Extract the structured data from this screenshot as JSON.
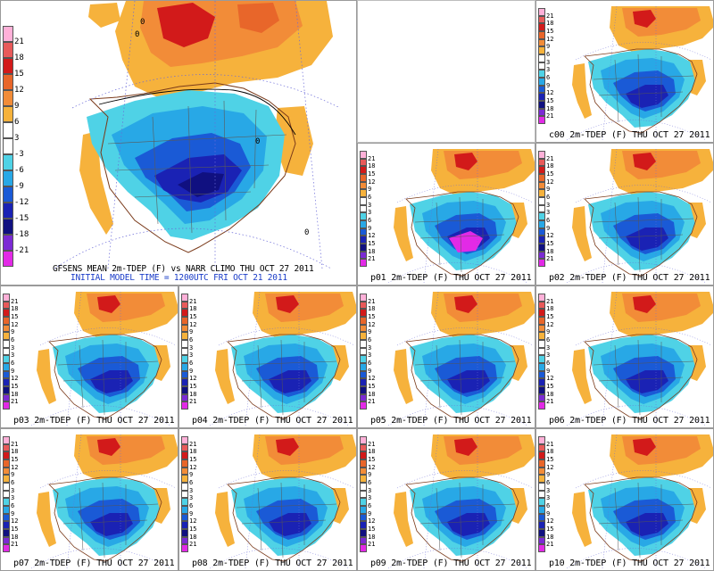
{
  "main": {
    "title": "GFSENS MEAN 2m-TDEP (F) vs NARR CLIMO THU OCT 27 2011",
    "subtitle": "INITIAL MODEL TIME = 1200UTC FRI OCT 21 2011",
    "contour_labels": [
      "0",
      "0",
      "0",
      "0"
    ]
  },
  "colorbar": {
    "labels": [
      "21",
      "18",
      "15",
      "12",
      "9",
      "6",
      "3",
      "-3",
      "-6",
      "-9",
      "-12",
      "-15",
      "-18",
      "-21"
    ],
    "small_labels": [
      "21",
      "18",
      "15",
      "12",
      "9",
      "6",
      "3",
      "3",
      "6",
      "9",
      "12",
      "15",
      "18",
      "21"
    ],
    "colors": [
      "#ffb0d8",
      "#e85a5a",
      "#d21a1a",
      "#e8662a",
      "#f28c38",
      "#f6b23c",
      "#ffffff",
      "#ffffff",
      "#4fd2e6",
      "#28a8e6",
      "#1a5ad6",
      "#1a22b4",
      "#101080",
      "#7c2ad4",
      "#e22ae6"
    ]
  },
  "member_suffix": "2m-TDEP (F) THU OCT 27 2011",
  "members": [
    {
      "id": "c00",
      "caption": "c00  2m-TDEP (F)  THU OCT 27 2011"
    },
    {
      "id": "p01",
      "caption": "p01  2m-TDEP (F)  THU OCT 27 2011"
    },
    {
      "id": "p02",
      "caption": "p02  2m-TDEP (F)  THU OCT 27 2011"
    },
    {
      "id": "p03",
      "caption": "p03  2m-TDEP (F)  THU OCT 27 2011"
    },
    {
      "id": "p04",
      "caption": "p04  2m-TDEP (F)  THU OCT 27 2011"
    },
    {
      "id": "p05",
      "caption": "p05  2m-TDEP (F)  THU OCT 27 2011"
    },
    {
      "id": "p06",
      "caption": "p06  2m-TDEP (F)  THU OCT 27 2011"
    },
    {
      "id": "p07",
      "caption": "p07  2m-TDEP (F)  THU OCT 27 2011"
    },
    {
      "id": "p08",
      "caption": "p08  2m-TDEP (F)  THU OCT 27 2011"
    },
    {
      "id": "p09",
      "caption": "p09  2m-TDEP (F)  THU OCT 27 2011"
    },
    {
      "id": "p10",
      "caption": "p10  2m-TDEP (F)  THU OCT 27 2011"
    }
  ]
}
